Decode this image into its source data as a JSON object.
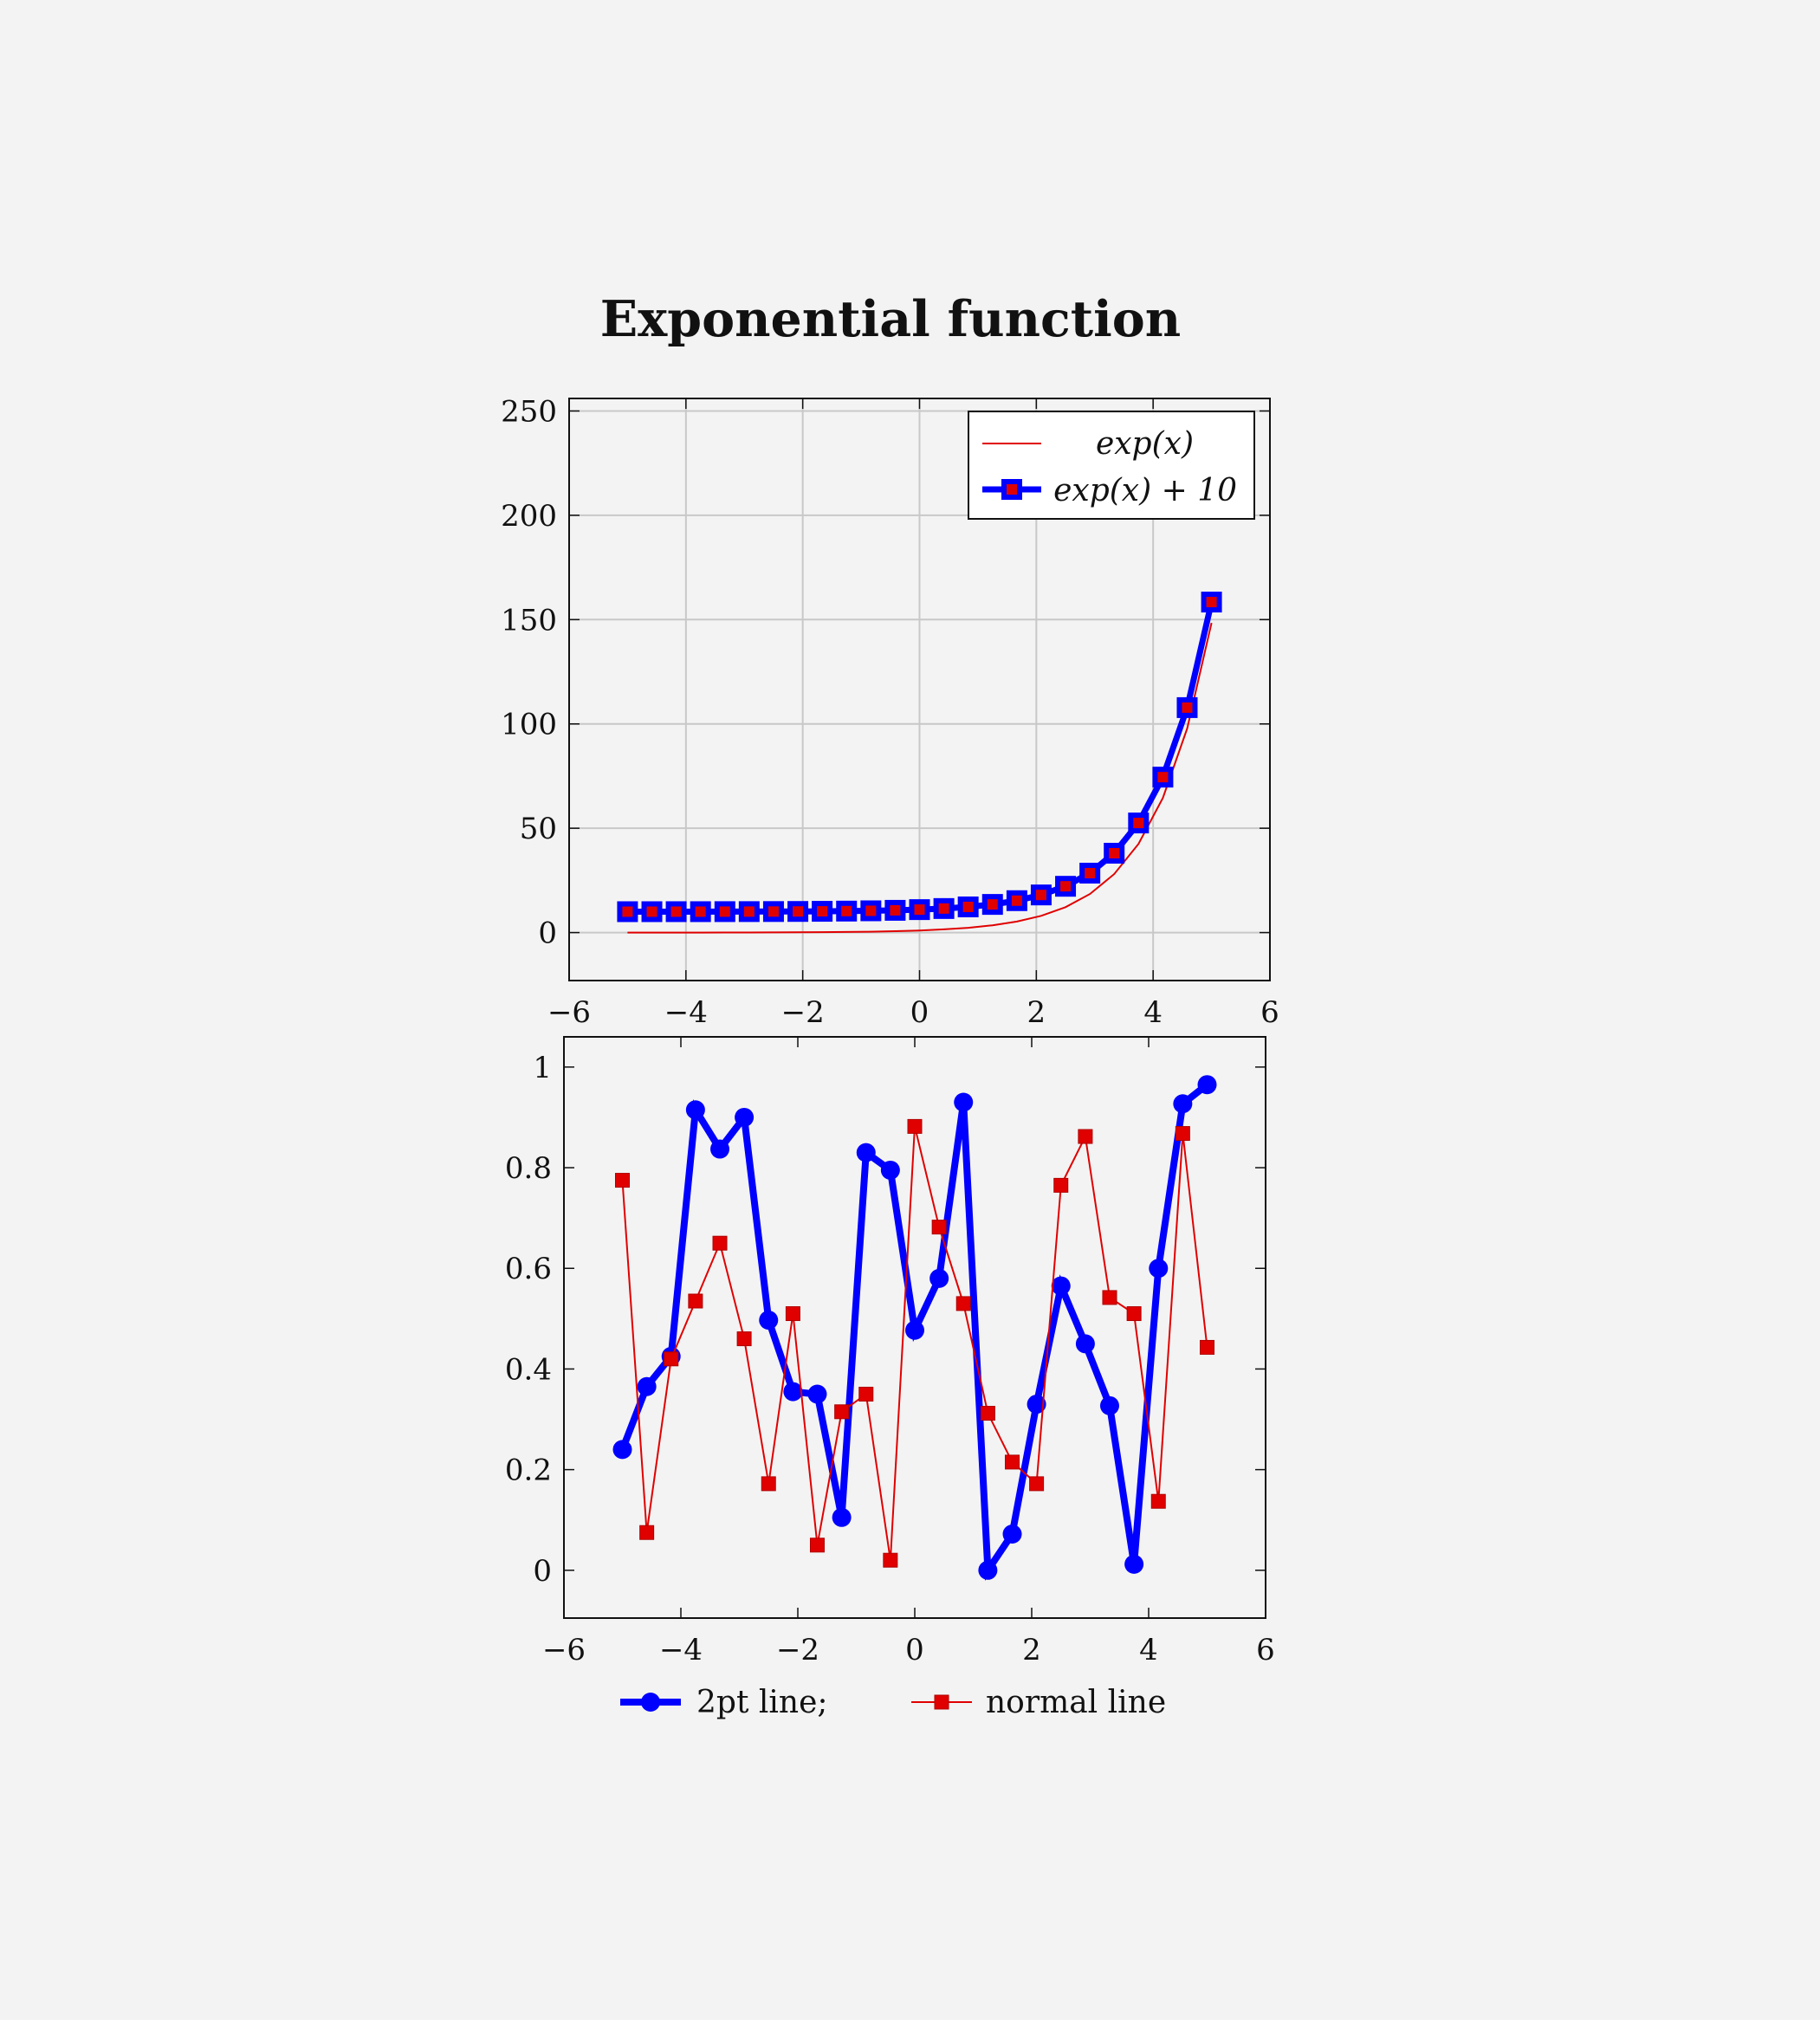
{
  "colors": {
    "blue": "#0000ff",
    "red": "#e00000",
    "grid": "#c8c8c8",
    "axis": "#111111",
    "bg": "#f3f3f3"
  },
  "chart_data": [
    {
      "type": "line",
      "title": "Exponential function",
      "xlabel": "",
      "ylabel": "",
      "xlim": [
        -6,
        6
      ],
      "ylim": [
        -23,
        256
      ],
      "grid": true,
      "legend_position": "top-right",
      "x_ticks": [
        "−6",
        "−4",
        "−2",
        "0",
        "2",
        "4",
        "6"
      ],
      "y_ticks": [
        "0",
        "50",
        "100",
        "150",
        "200",
        "250"
      ],
      "series": [
        {
          "name": "exp(x)",
          "color": "#e00000",
          "marker": "none",
          "x": [
            -5,
            -4.583,
            -4.167,
            -3.75,
            -3.333,
            -2.917,
            -2.5,
            -2.083,
            -1.667,
            -1.25,
            -0.833,
            -0.417,
            0,
            0.417,
            0.833,
            1.25,
            1.667,
            2.083,
            2.5,
            2.917,
            3.333,
            3.75,
            4.167,
            4.583,
            5
          ],
          "y": [
            0.01,
            0.01,
            0.02,
            0.02,
            0.04,
            0.05,
            0.08,
            0.12,
            0.19,
            0.29,
            0.43,
            0.66,
            1,
            1.52,
            2.3,
            3.49,
            5.29,
            8.03,
            12.18,
            18.48,
            28.03,
            42.52,
            64.5,
            97.82,
            148.41
          ]
        },
        {
          "name": "exp(x) + 10",
          "color": "#0000ff",
          "marker": "square",
          "x": [
            -5,
            -4.583,
            -4.167,
            -3.75,
            -3.333,
            -2.917,
            -2.5,
            -2.083,
            -1.667,
            -1.25,
            -0.833,
            -0.417,
            0,
            0.417,
            0.833,
            1.25,
            1.667,
            2.083,
            2.5,
            2.917,
            3.333,
            3.75,
            4.167,
            4.583,
            5
          ],
          "y": [
            10.01,
            10.01,
            10.02,
            10.02,
            10.04,
            10.05,
            10.08,
            10.12,
            10.19,
            10.29,
            10.43,
            10.66,
            11,
            11.52,
            12.3,
            13.49,
            15.29,
            18.03,
            22.18,
            28.48,
            38.03,
            52.52,
            74.5,
            107.82,
            158.41
          ]
        }
      ]
    },
    {
      "type": "line",
      "title": "",
      "xlabel": "",
      "ylabel": "",
      "xlim": [
        -6,
        6
      ],
      "ylim": [
        -0.095,
        1.06
      ],
      "grid": false,
      "legend_position": "bottom",
      "x_ticks": [
        "−6",
        "−4",
        "−2",
        "0",
        "2",
        "4",
        "6"
      ],
      "y_ticks": [
        "0",
        "0.2",
        "0.4",
        "0.6",
        "0.8",
        "1"
      ],
      "series": [
        {
          "name": "2pt line;",
          "color": "#0000ff",
          "marker": "circle",
          "x": [
            -5,
            -4.583,
            -4.167,
            -3.75,
            -3.333,
            -2.917,
            -2.5,
            -2.083,
            -1.667,
            -1.25,
            -0.833,
            -0.417,
            0,
            0.417,
            0.833,
            1.25,
            1.667,
            2.083,
            2.5,
            2.917,
            3.333,
            3.75,
            4.167,
            4.583,
            5
          ],
          "y": [
            0.24,
            0.365,
            0.425,
            0.915,
            0.837,
            0.9,
            0.497,
            0.355,
            0.35,
            0.105,
            0.83,
            0.795,
            0.477,
            0.58,
            0.93,
            0.0,
            0.072,
            0.33,
            0.565,
            0.45,
            0.327,
            0.012,
            0.6,
            0.927,
            0.965
          ]
        },
        {
          "name": "normal line",
          "color": "#e00000",
          "marker": "square",
          "x": [
            -5,
            -4.583,
            -4.167,
            -3.75,
            -3.333,
            -2.917,
            -2.5,
            -2.083,
            -1.667,
            -1.25,
            -0.833,
            -0.417,
            0,
            0.417,
            0.833,
            1.25,
            1.667,
            2.083,
            2.5,
            2.917,
            3.333,
            3.75,
            4.167,
            4.583,
            5
          ],
          "y": [
            0.775,
            0.075,
            0.42,
            0.535,
            0.65,
            0.46,
            0.172,
            0.51,
            0.05,
            0.315,
            0.35,
            0.02,
            0.882,
            0.682,
            0.53,
            0.312,
            0.215,
            0.172,
            0.765,
            0.862,
            0.542,
            0.51,
            0.137,
            0.868,
            0.443
          ]
        }
      ]
    }
  ]
}
